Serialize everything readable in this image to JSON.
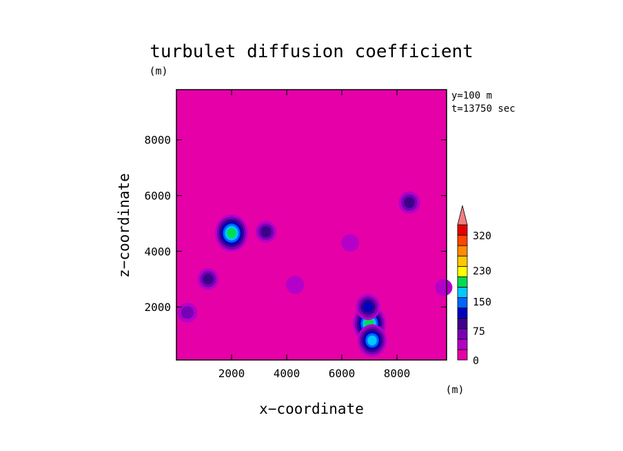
{
  "chart_data": {
    "type": "heatmap",
    "title": "turbulet diffusion coefficient",
    "xlabel": "x−coordinate",
    "ylabel": "z−coordinate",
    "x_unit": "(m)",
    "y_unit": "(m)",
    "annotations": [
      "y=100 m",
      "t=13750 sec"
    ],
    "xlim": [
      0,
      9800
    ],
    "ylim": [
      100,
      9800
    ],
    "x_ticks": [
      2000,
      4000,
      6000,
      8000
    ],
    "y_ticks": [
      2000,
      4000,
      6000,
      8000
    ],
    "x_tick_labels": [
      "2000",
      "4000",
      "6000",
      "8000"
    ],
    "y_tick_labels": [
      "2000",
      "4000",
      "6000",
      "8000"
    ],
    "background_value": 0,
    "colorbar": {
      "levels": [
        0,
        25,
        50,
        75,
        100,
        125,
        150,
        175,
        205,
        230,
        260,
        290,
        320
      ],
      "tick_values": [
        0,
        75,
        150,
        230,
        320
      ],
      "tick_labels": [
        "0",
        "75",
        "150",
        "230",
        "320"
      ],
      "colors": [
        "#e600a8",
        "#b400c8",
        "#7800b4",
        "#3c008c",
        "#0000c0",
        "#0064ff",
        "#00c8ff",
        "#00dc50",
        "#ffff00",
        "#ffc800",
        "#ff8c00",
        "#ff4600",
        "#e60000"
      ],
      "extend_max": true,
      "extend_color": "#f08080"
    },
    "features": [
      {
        "x": 2000,
        "z": 4650,
        "peak": 200
      },
      {
        "x": 7000,
        "z": 1400,
        "peak": 200
      },
      {
        "x": 7100,
        "z": 800,
        "peak": 160
      },
      {
        "x": 6950,
        "z": 2000,
        "peak": 110
      },
      {
        "x": 8450,
        "z": 5750,
        "peak": 80
      },
      {
        "x": 3250,
        "z": 4700,
        "peak": 75
      },
      {
        "x": 1150,
        "z": 3000,
        "peak": 75
      },
      {
        "x": 400,
        "z": 1800,
        "peak": 60
      },
      {
        "x": 4300,
        "z": 2800,
        "peak": 45
      },
      {
        "x": 6300,
        "z": 4300,
        "peak": 40
      },
      {
        "x": 9700,
        "z": 2700,
        "peak": 35
      }
    ],
    "grid": false
  }
}
